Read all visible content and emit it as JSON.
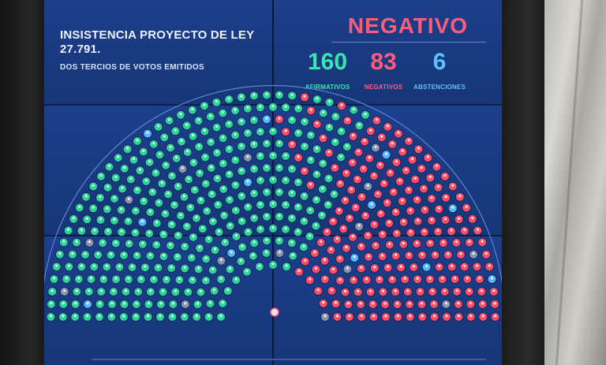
{
  "board": {
    "title": "INSISTENCIA PROYECTO DE LEY 27.791.",
    "subtitle": "DOS TERCIOS DE VOTOS EMITIDOS",
    "result": "NEGATIVO",
    "counts": [
      {
        "value": "160",
        "label": "AFIRMATIVOS",
        "color": "#38e6b2"
      },
      {
        "value": "83",
        "label": "NEGATIVOS",
        "color": "#ff5b7a"
      },
      {
        "value": "6",
        "label": "ABSTENCIONES",
        "color": "#5cc1ff"
      }
    ]
  },
  "seats": {
    "rows": 15,
    "colors": {
      "affirmative": "#2fd39a",
      "negative": "#ff4f68",
      "abstention": "#58b7ff",
      "absent": "#8a94ad",
      "center": "#e0e6f5"
    }
  }
}
